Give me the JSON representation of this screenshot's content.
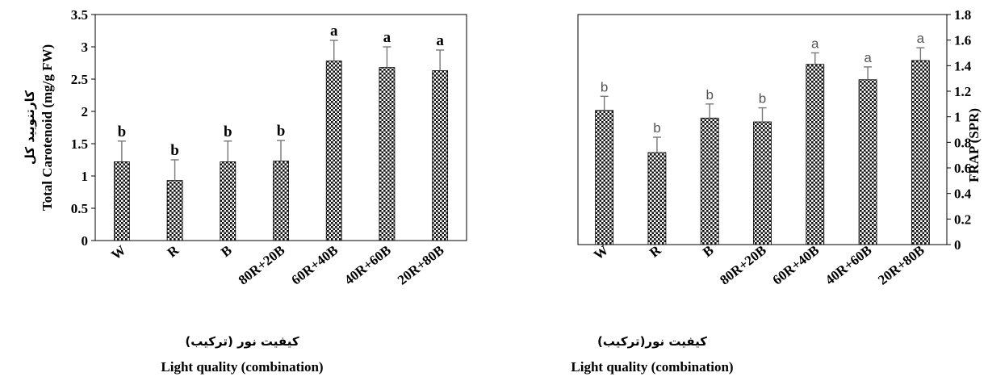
{
  "chart_data": [
    {
      "type": "bar",
      "categories": [
        "W",
        "R",
        "B",
        "80R+20B",
        "60R+40B",
        "40R+60B",
        "20R+80B"
      ],
      "values": [
        1.22,
        0.93,
        1.22,
        1.23,
        2.78,
        2.68,
        2.63
      ],
      "errors": [
        0.32,
        0.32,
        0.32,
        0.32,
        0.32,
        0.32,
        0.32
      ],
      "significance": [
        "b",
        "b",
        "b",
        "b",
        "a",
        "a",
        "a"
      ],
      "ylim": [
        0,
        3.5
      ],
      "yticks": [
        "0",
        "0.5",
        "1",
        "1.5",
        "2",
        "2.5",
        "3",
        "3.5"
      ],
      "ylabel": "Total Carotenoid (mg/g FW)",
      "ylabel_fa": "کارتنویید کل",
      "xlabel": "Light quality (combination)",
      "xlabel_fa": "کیفیت نور (ترکیب)",
      "grid": false,
      "y_axis_side": "left"
    },
    {
      "type": "bar",
      "categories": [
        "W",
        "R",
        "B",
        "80R+20B",
        "60R+40B",
        "40R+60B",
        "20R+80B"
      ],
      "values": [
        1.05,
        0.72,
        0.99,
        0.96,
        1.41,
        1.29,
        1.44
      ],
      "errors": [
        0.11,
        0.12,
        0.11,
        0.11,
        0.09,
        0.1,
        0.1
      ],
      "significance": [
        "b",
        "b",
        "b",
        "b",
        "a",
        "a",
        "a"
      ],
      "ylim": [
        0,
        1.8
      ],
      "yticks": [
        "0",
        "0.2",
        "0.4",
        "0.6",
        "0.8",
        "1",
        "1.2",
        "1.4",
        "1.6",
        "1.8"
      ],
      "ylabel": "FRAP (SPR)",
      "xlabel": "Light quality (combination)",
      "xlabel_fa": "کیفیت نور(ترکیب)",
      "grid": false,
      "y_axis_side": "right"
    }
  ]
}
